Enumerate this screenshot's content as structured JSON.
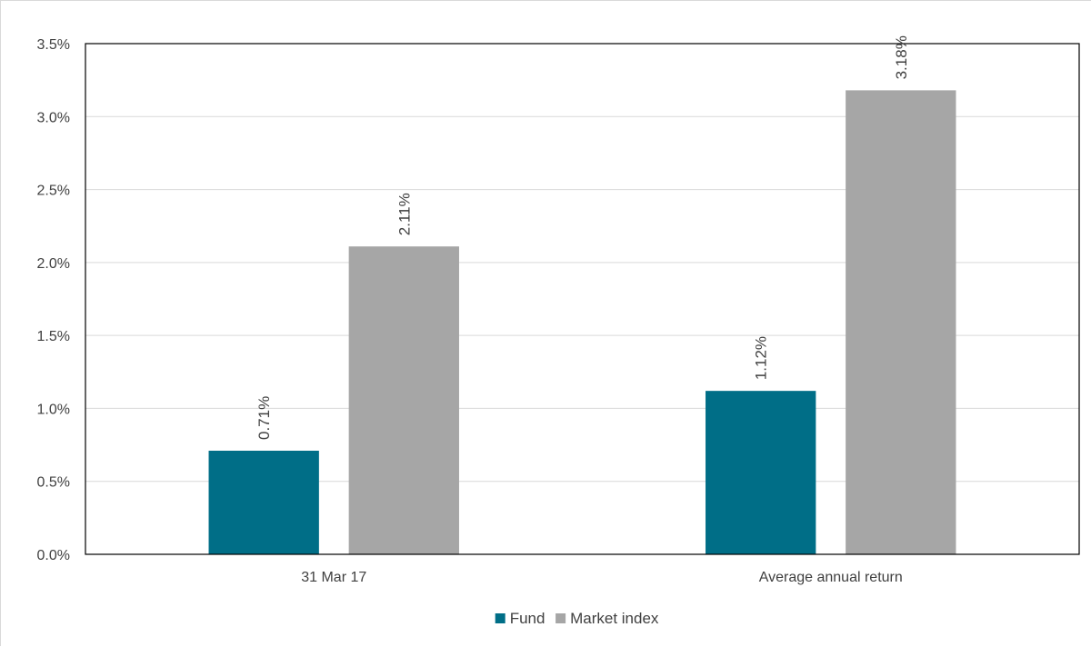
{
  "chart_data": {
    "type": "bar",
    "title": "",
    "xlabel": "",
    "ylabel": "",
    "categories": [
      "31 Mar 17",
      "Average annual return"
    ],
    "series": [
      {
        "name": "Fund",
        "values": [
          0.71,
          1.12
        ],
        "labels": [
          "0.71%",
          "1.12%"
        ],
        "color": "#006e87"
      },
      {
        "name": "Market index",
        "values": [
          2.11,
          3.18
        ],
        "labels": [
          "2.11%",
          "3.18%"
        ],
        "color": "#a6a6a6"
      }
    ],
    "ylim": [
      0,
      3.5
    ],
    "yticks": [
      0.0,
      0.5,
      1.0,
      1.5,
      2.0,
      2.5,
      3.0,
      3.5
    ],
    "ytick_labels": [
      "0.0%",
      "0.5%",
      "1.0%",
      "1.5%",
      "2.0%",
      "2.5%",
      "3.0%",
      "3.5%"
    ],
    "grid": true,
    "legend_position": "bottom",
    "data_labels_rotated": true
  }
}
